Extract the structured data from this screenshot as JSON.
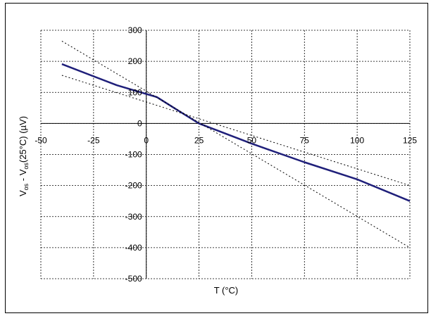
{
  "chart_data": {
    "type": "line",
    "title": "",
    "xlabel": "T (°C)",
    "ylabel": {
      "parts": [
        {
          "text": "V",
          "sub": false
        },
        {
          "text": "os",
          "sub": true
        },
        {
          "text": " - V",
          "sub": false
        },
        {
          "text": "os",
          "sub": true
        },
        {
          "text": "(25°C) (µV)",
          "sub": false
        }
      ]
    },
    "xlim": [
      -50,
      125
    ],
    "ylim": [
      -500,
      300
    ],
    "x_ticks": [
      -50,
      -25,
      0,
      25,
      50,
      75,
      100,
      125
    ],
    "x_tick_labels": [
      "-50",
      "-25",
      "0",
      "25",
      "50",
      "75",
      "100",
      "125"
    ],
    "y_ticks": [
      300,
      200,
      100,
      0,
      -100,
      -200,
      -300,
      -400,
      -500
    ],
    "y_tick_labels": [
      "300",
      "200",
      "100",
      "0",
      "-100",
      "-200",
      "-300",
      "-400",
      "-500"
    ],
    "grid": true,
    "grid_style": "dotted",
    "series": [
      {
        "style": "solid",
        "color": "#1f1f7a",
        "x": [
          -40,
          -14,
          0,
          5,
          15,
          25,
          50,
          75,
          100,
          125
        ],
        "y": [
          191,
          123,
          95,
          85,
          42,
          0,
          -65,
          -125,
          -180,
          -250
        ]
      },
      {
        "style": "dotted",
        "color": "#000000",
        "x": [
          -40,
          125
        ],
        "y": [
          265,
          -400
        ]
      },
      {
        "style": "dotted",
        "color": "#000000",
        "x": [
          -40,
          125
        ],
        "y": [
          155,
          -200
        ]
      }
    ]
  }
}
